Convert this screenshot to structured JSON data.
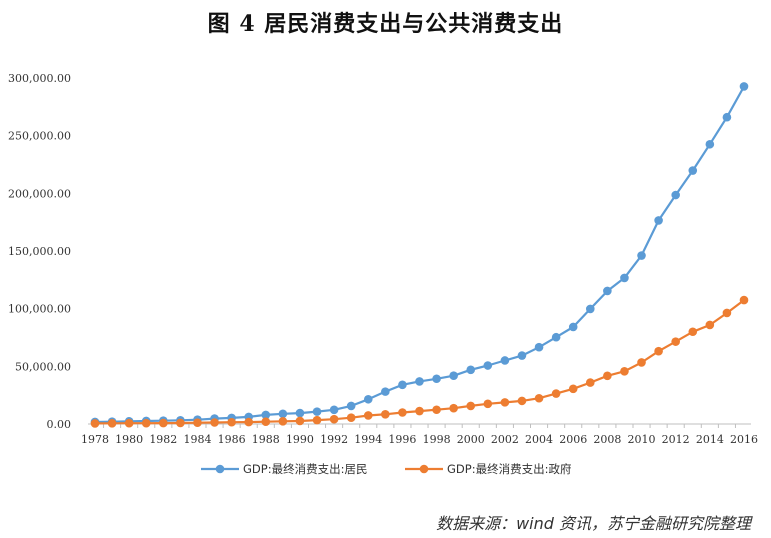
{
  "header": {
    "title": "图 4  居民消费支出与公共消费支出"
  },
  "source": "数据来源：wind 资讯，苏宁金融研究院整理",
  "chart_data": {
    "type": "line",
    "title": "图 4  居民消费支出与公共消费支出",
    "xlabel": "",
    "ylabel": "",
    "ylim": [
      0,
      300000
    ],
    "yticks": [
      "0.00",
      "50,000.00",
      "100,000.00",
      "150,000.00",
      "200,000.00",
      "250,000.00",
      "300,000.00"
    ],
    "ytick_values": [
      0,
      50000,
      100000,
      150000,
      200000,
      250000,
      300000
    ],
    "xticks": [
      "1978",
      "1980",
      "1982",
      "1984",
      "1986",
      "1988",
      "1990",
      "1992",
      "1994",
      "1996",
      "1998",
      "2000",
      "2002",
      "2004",
      "2006",
      "2008",
      "2010",
      "2012",
      "2014",
      "2016"
    ],
    "x": [
      1978,
      1979,
      1980,
      1981,
      1982,
      1983,
      1984,
      1985,
      1986,
      1987,
      1988,
      1989,
      1990,
      1991,
      1992,
      1993,
      1994,
      1995,
      1996,
      1997,
      1998,
      1999,
      2000,
      2001,
      2002,
      2003,
      2004,
      2005,
      2006,
      2007,
      2008,
      2009,
      2010,
      2011,
      2012,
      2013,
      2014,
      2015,
      2016
    ],
    "legend_position": "bottom",
    "grid": false,
    "series": [
      {
        "name": "GDP:最终消费支出:居民",
        "color": "#5B9BD5",
        "values": [
          1759,
          2014,
          2336,
          2627,
          2903,
          3231,
          3742,
          4687,
          5302,
          6126,
          7868,
          8812,
          9451,
          10731,
          12312,
          15696,
          21446,
          28073,
          33955,
          36922,
          39230,
          41920,
          46988,
          50708,
          55076,
          59344,
          66587,
          75232,
          84119,
          99793,
          115338,
          126661,
          146058,
          176532,
          198537,
          219763,
          242540,
          265980,
          292661
        ]
      },
      {
        "name": "GDP:最终消费支出:政府",
        "color": "#ED7D31",
        "values": [
          480,
          622,
          676,
          733,
          812,
          895,
          1104,
          1298,
          1519,
          1678,
          1971,
          2351,
          2639,
          3361,
          4203,
          5487,
          7398,
          8378,
          9964,
          11219,
          12359,
          13717,
          15661,
          17498,
          18760,
          20036,
          22334,
          26399,
          30528,
          35900,
          41752,
          45690,
          53357,
          63155,
          71409,
          79978,
          85858,
          96286,
          107450
        ]
      }
    ]
  }
}
